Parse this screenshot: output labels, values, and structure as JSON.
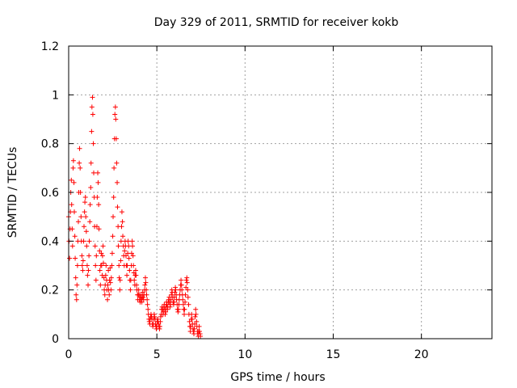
{
  "chart_data": {
    "type": "scatter",
    "title": "Day 329 of 2011, SRMTID for receiver kokb",
    "xlabel": "GPS time / hours",
    "ylabel": "SRMTID / TECUs",
    "xlim": [
      0,
      24
    ],
    "ylim": [
      0,
      1.2
    ],
    "x_ticks": [
      0,
      5,
      10,
      15,
      20
    ],
    "y_ticks": [
      0,
      0.2,
      0.4,
      0.6,
      0.8,
      1,
      1.2
    ],
    "x_tick_labels": [
      "0",
      "5",
      "10",
      "15",
      "20"
    ],
    "y_tick_labels": [
      "0",
      "0.2",
      "0.4",
      "0.6",
      "0.8",
      "1",
      "1.2"
    ],
    "grid": true,
    "marker": "+",
    "series": [
      {
        "name": "SRMTID",
        "color": "#ff0000",
        "points": [
          [
            0.0,
            0.5
          ],
          [
            0.02,
            0.4
          ],
          [
            0.05,
            0.33
          ],
          [
            0.08,
            0.45
          ],
          [
            0.1,
            0.52
          ],
          [
            0.12,
            0.6
          ],
          [
            0.15,
            0.65
          ],
          [
            0.17,
            0.55
          ],
          [
            0.2,
            0.45
          ],
          [
            0.22,
            0.38
          ],
          [
            0.25,
            0.7
          ],
          [
            0.27,
            0.73
          ],
          [
            0.3,
            0.64
          ],
          [
            0.32,
            0.52
          ],
          [
            0.35,
            0.42
          ],
          [
            0.37,
            0.33
          ],
          [
            0.4,
            0.25
          ],
          [
            0.42,
            0.18
          ],
          [
            0.45,
            0.16
          ],
          [
            0.47,
            0.22
          ],
          [
            0.5,
            0.3
          ],
          [
            0.52,
            0.4
          ],
          [
            0.55,
            0.48
          ],
          [
            0.57,
            0.6
          ],
          [
            0.6,
            0.72
          ],
          [
            0.62,
            0.78
          ],
          [
            0.65,
            0.7
          ],
          [
            0.67,
            0.6
          ],
          [
            0.7,
            0.5
          ],
          [
            0.72,
            0.4
          ],
          [
            0.75,
            0.34
          ],
          [
            0.77,
            0.3
          ],
          [
            0.8,
            0.28
          ],
          [
            0.82,
            0.32
          ],
          [
            0.85,
            0.4
          ],
          [
            0.87,
            0.46
          ],
          [
            0.9,
            0.52
          ],
          [
            0.92,
            0.56
          ],
          [
            0.95,
            0.58
          ],
          [
            0.97,
            0.5
          ],
          [
            1.0,
            0.44
          ],
          [
            1.02,
            0.38
          ],
          [
            1.05,
            0.3
          ],
          [
            1.07,
            0.26
          ],
          [
            1.1,
            0.22
          ],
          [
            1.12,
            0.28
          ],
          [
            1.15,
            0.34
          ],
          [
            1.17,
            0.4
          ],
          [
            1.2,
            0.48
          ],
          [
            1.22,
            0.55
          ],
          [
            1.25,
            0.62
          ],
          [
            1.27,
            0.72
          ],
          [
            1.3,
            0.85
          ],
          [
            1.32,
            0.95
          ],
          [
            1.35,
            0.99
          ],
          [
            1.37,
            0.92
          ],
          [
            1.4,
            0.8
          ],
          [
            1.42,
            0.68
          ],
          [
            1.45,
            0.58
          ],
          [
            1.47,
            0.46
          ],
          [
            1.5,
            0.38
          ],
          [
            1.52,
            0.3
          ],
          [
            1.55,
            0.24
          ],
          [
            1.57,
            0.34
          ],
          [
            1.6,
            0.46
          ],
          [
            1.62,
            0.58
          ],
          [
            1.65,
            0.68
          ],
          [
            1.67,
            0.64
          ],
          [
            1.7,
            0.55
          ],
          [
            1.72,
            0.45
          ],
          [
            1.75,
            0.36
          ],
          [
            1.77,
            0.28
          ],
          [
            1.8,
            0.22
          ],
          [
            1.82,
            0.3
          ],
          [
            1.85,
            0.35
          ],
          [
            1.87,
            0.3
          ],
          [
            1.9,
            0.26
          ],
          [
            1.92,
            0.34
          ],
          [
            1.95,
            0.38
          ],
          [
            1.97,
            0.31
          ],
          [
            2.0,
            0.25
          ],
          [
            2.02,
            0.2
          ],
          [
            2.05,
            0.18
          ],
          [
            2.07,
            0.22
          ],
          [
            2.1,
            0.26
          ],
          [
            2.12,
            0.3
          ],
          [
            2.15,
            0.24
          ],
          [
            2.17,
            0.2
          ],
          [
            2.2,
            0.16
          ],
          [
            2.22,
            0.22
          ],
          [
            2.25,
            0.28
          ],
          [
            2.27,
            0.2
          ],
          [
            2.3,
            0.18
          ],
          [
            2.32,
            0.24
          ],
          [
            2.35,
            0.29
          ],
          [
            2.37,
            0.23
          ],
          [
            2.4,
            0.2
          ],
          [
            2.42,
            0.25
          ],
          [
            2.45,
            0.3
          ],
          [
            2.47,
            0.35
          ],
          [
            2.5,
            0.42
          ],
          [
            2.52,
            0.5
          ],
          [
            2.55,
            0.58
          ],
          [
            2.57,
            0.7
          ],
          [
            2.6,
            0.82
          ],
          [
            2.62,
            0.92
          ],
          [
            2.65,
            0.95
          ],
          [
            2.67,
            0.9
          ],
          [
            2.7,
            0.82
          ],
          [
            2.72,
            0.72
          ],
          [
            2.75,
            0.64
          ],
          [
            2.77,
            0.54
          ],
          [
            2.8,
            0.46
          ],
          [
            2.82,
            0.38
          ],
          [
            2.85,
            0.3
          ],
          [
            2.87,
            0.25
          ],
          [
            2.9,
            0.2
          ],
          [
            2.92,
            0.24
          ],
          [
            2.95,
            0.32
          ],
          [
            2.97,
            0.4
          ],
          [
            3.0,
            0.46
          ],
          [
            3.02,
            0.52
          ],
          [
            3.05,
            0.48
          ],
          [
            3.07,
            0.42
          ],
          [
            3.1,
            0.38
          ],
          [
            3.12,
            0.34
          ],
          [
            3.15,
            0.3
          ],
          [
            3.17,
            0.36
          ],
          [
            3.2,
            0.4
          ],
          [
            3.22,
            0.38
          ],
          [
            3.25,
            0.34
          ],
          [
            3.27,
            0.3
          ],
          [
            3.3,
            0.26
          ],
          [
            3.32,
            0.3
          ],
          [
            3.35,
            0.35
          ],
          [
            3.37,
            0.4
          ],
          [
            3.4,
            0.38
          ],
          [
            3.42,
            0.33
          ],
          [
            3.45,
            0.28
          ],
          [
            3.47,
            0.24
          ],
          [
            3.5,
            0.2
          ],
          [
            3.52,
            0.24
          ],
          [
            3.55,
            0.3
          ],
          [
            3.57,
            0.35
          ],
          [
            3.6,
            0.4
          ],
          [
            3.62,
            0.38
          ],
          [
            3.65,
            0.34
          ],
          [
            3.67,
            0.3
          ],
          [
            3.7,
            0.27
          ],
          [
            3.72,
            0.24
          ],
          [
            3.75,
            0.22
          ],
          [
            3.77,
            0.26
          ],
          [
            3.8,
            0.28
          ],
          [
            3.82,
            0.26
          ],
          [
            3.85,
            0.22
          ],
          [
            3.87,
            0.2
          ],
          [
            3.9,
            0.18
          ],
          [
            3.92,
            0.16
          ],
          [
            3.95,
            0.18
          ],
          [
            3.97,
            0.2
          ],
          [
            4.0,
            0.18
          ],
          [
            4.02,
            0.16
          ],
          [
            4.05,
            0.15
          ],
          [
            4.07,
            0.17
          ],
          [
            4.1,
            0.18
          ],
          [
            4.12,
            0.16
          ],
          [
            4.15,
            0.15
          ],
          [
            4.17,
            0.17
          ],
          [
            4.2,
            0.19
          ],
          [
            4.22,
            0.17
          ],
          [
            4.25,
            0.16
          ],
          [
            4.27,
            0.18
          ],
          [
            4.3,
            0.2
          ],
          [
            4.32,
            0.22
          ],
          [
            4.35,
            0.25
          ],
          [
            4.37,
            0.23
          ],
          [
            4.4,
            0.2
          ],
          [
            4.42,
            0.18
          ],
          [
            4.45,
            0.16
          ],
          [
            4.47,
            0.14
          ],
          [
            4.5,
            0.12
          ],
          [
            4.52,
            0.1
          ],
          [
            4.55,
            0.08
          ],
          [
            4.57,
            0.07
          ],
          [
            4.6,
            0.06
          ],
          [
            4.62,
            0.08
          ],
          [
            4.65,
            0.09
          ],
          [
            4.67,
            0.1
          ],
          [
            4.7,
            0.09
          ],
          [
            4.72,
            0.08
          ],
          [
            4.75,
            0.06
          ],
          [
            4.77,
            0.05
          ],
          [
            4.8,
            0.06
          ],
          [
            4.82,
            0.08
          ],
          [
            4.85,
            0.1
          ],
          [
            4.87,
            0.09
          ],
          [
            4.9,
            0.08
          ],
          [
            4.92,
            0.06
          ],
          [
            4.95,
            0.05
          ],
          [
            4.97,
            0.04
          ],
          [
            5.0,
            0.05
          ],
          [
            5.02,
            0.07
          ],
          [
            5.05,
            0.08
          ],
          [
            5.07,
            0.07
          ],
          [
            5.1,
            0.06
          ],
          [
            5.12,
            0.05
          ],
          [
            5.15,
            0.04
          ],
          [
            5.17,
            0.05
          ],
          [
            5.2,
            0.07
          ],
          [
            5.22,
            0.09
          ],
          [
            5.25,
            0.1
          ],
          [
            5.27,
            0.12
          ],
          [
            5.3,
            0.13
          ],
          [
            5.32,
            0.12
          ],
          [
            5.35,
            0.1
          ],
          [
            5.37,
            0.11
          ],
          [
            5.4,
            0.13
          ],
          [
            5.42,
            0.14
          ],
          [
            5.45,
            0.12
          ],
          [
            5.47,
            0.1
          ],
          [
            5.5,
            0.11
          ],
          [
            5.52,
            0.13
          ],
          [
            5.55,
            0.15
          ],
          [
            5.57,
            0.14
          ],
          [
            5.6,
            0.12
          ],
          [
            5.62,
            0.13
          ],
          [
            5.65,
            0.15
          ],
          [
            5.67,
            0.16
          ],
          [
            5.7,
            0.17
          ],
          [
            5.72,
            0.15
          ],
          [
            5.75,
            0.13
          ],
          [
            5.77,
            0.14
          ],
          [
            5.8,
            0.16
          ],
          [
            5.82,
            0.18
          ],
          [
            5.85,
            0.2
          ],
          [
            5.87,
            0.19
          ],
          [
            5.9,
            0.17
          ],
          [
            5.92,
            0.15
          ],
          [
            5.95,
            0.14
          ],
          [
            5.97,
            0.15
          ],
          [
            6.0,
            0.17
          ],
          [
            6.02,
            0.19
          ],
          [
            6.05,
            0.21
          ],
          [
            6.07,
            0.2
          ],
          [
            6.1,
            0.18
          ],
          [
            6.12,
            0.16
          ],
          [
            6.15,
            0.14
          ],
          [
            6.17,
            0.12
          ],
          [
            6.2,
            0.11
          ],
          [
            6.22,
            0.12
          ],
          [
            6.25,
            0.14
          ],
          [
            6.27,
            0.16
          ],
          [
            6.3,
            0.18
          ],
          [
            6.32,
            0.2
          ],
          [
            6.35,
            0.22
          ],
          [
            6.37,
            0.24
          ],
          [
            6.4,
            0.22
          ],
          [
            6.42,
            0.2
          ],
          [
            6.45,
            0.18
          ],
          [
            6.47,
            0.16
          ],
          [
            6.5,
            0.14
          ],
          [
            6.52,
            0.12
          ],
          [
            6.55,
            0.1
          ],
          [
            6.57,
            0.12
          ],
          [
            6.6,
            0.15
          ],
          [
            6.62,
            0.18
          ],
          [
            6.65,
            0.21
          ],
          [
            6.67,
            0.24
          ],
          [
            6.7,
            0.25
          ],
          [
            6.72,
            0.23
          ],
          [
            6.75,
            0.2
          ],
          [
            6.77,
            0.17
          ],
          [
            6.8,
            0.14
          ],
          [
            6.82,
            0.1
          ],
          [
            6.85,
            0.07
          ],
          [
            6.87,
            0.05
          ],
          [
            6.9,
            0.03
          ],
          [
            6.92,
            0.05
          ],
          [
            6.95,
            0.08
          ],
          [
            6.97,
            0.1
          ],
          [
            7.0,
            0.08
          ],
          [
            7.02,
            0.06
          ],
          [
            7.05,
            0.04
          ],
          [
            7.07,
            0.03
          ],
          [
            7.1,
            0.02
          ],
          [
            7.12,
            0.04
          ],
          [
            7.15,
            0.06
          ],
          [
            7.17,
            0.09
          ],
          [
            7.2,
            0.12
          ],
          [
            7.22,
            0.1
          ],
          [
            7.25,
            0.07
          ],
          [
            7.27,
            0.05
          ],
          [
            7.3,
            0.03
          ],
          [
            7.32,
            0.02
          ],
          [
            7.35,
            0.01
          ],
          [
            7.37,
            0.03
          ],
          [
            7.4,
            0.05
          ],
          [
            7.42,
            0.03
          ],
          [
            7.45,
            0.02
          ],
          [
            7.47,
            0.01
          ]
        ]
      }
    ]
  }
}
